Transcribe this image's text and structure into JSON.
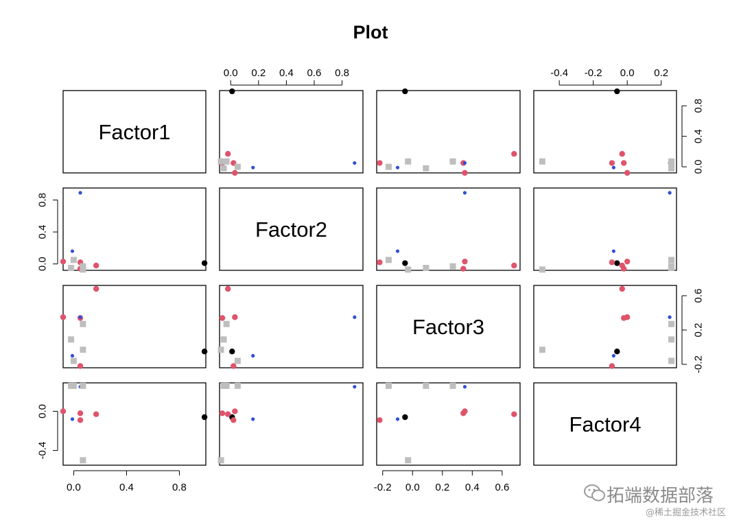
{
  "chart_data": {
    "type": "scatter",
    "title": "Plot",
    "variables": [
      "Factor1",
      "Factor2",
      "Factor3",
      "Factor4"
    ],
    "ranges": [
      [
        -0.08,
        1.0
      ],
      [
        -0.08,
        0.95
      ],
      [
        -0.24,
        0.72
      ],
      [
        -0.55,
        0.29
      ]
    ],
    "ticks": [
      [
        0.0,
        0.4,
        0.8
      ],
      [
        0.0,
        0.4,
        0.8
      ],
      [
        -0.2,
        0.2,
        0.6
      ],
      [
        -0.4,
        0.0
      ]
    ],
    "tick_labels": {
      "factor1": [
        "0.0",
        "0.4",
        "0.8"
      ],
      "factor2_top": [
        "0.0",
        "0.2",
        "0.4",
        "0.6",
        "0.8"
      ],
      "factor2_left": [
        "0.0",
        "0.4",
        "0.8"
      ],
      "factor3_bottom": [
        "-0.2",
        "0.0",
        "0.2",
        "0.4",
        "0.6"
      ],
      "factor3_right": [
        "-0.2",
        "0.2",
        "0.6"
      ],
      "factor4_top": [
        "-0.4",
        "-0.2",
        "0.0",
        "0.2"
      ],
      "factor4_left": [
        "-0.4",
        "0.0"
      ]
    },
    "groups": [
      {
        "color": "#000000",
        "marker": "circle",
        "size": "large"
      },
      {
        "color": "#df536b",
        "marker": "circle",
        "size": "large"
      },
      {
        "color": "#2e4fd6",
        "marker": "circle",
        "size": "small"
      },
      {
        "color": "#bebebe",
        "marker": "square",
        "size": "large"
      }
    ],
    "observations": [
      {
        "group": 0,
        "values": [
          0.99,
          0.01,
          -0.05,
          -0.06
        ]
      },
      {
        "group": 1,
        "values": [
          0.05,
          0.02,
          -0.22,
          -0.09
        ]
      },
      {
        "group": 1,
        "values": [
          -0.08,
          0.03,
          0.35,
          0.0
        ]
      },
      {
        "group": 1,
        "values": [
          0.17,
          -0.02,
          0.68,
          -0.03
        ]
      },
      {
        "group": 1,
        "values": [
          0.05,
          -0.06,
          0.34,
          -0.02
        ]
      },
      {
        "group": 2,
        "values": [
          -0.01,
          0.16,
          -0.1,
          -0.08
        ]
      },
      {
        "group": 2,
        "values": [
          0.05,
          0.89,
          0.35,
          0.25
        ]
      },
      {
        "group": 3,
        "values": [
          0.0,
          0.05,
          -0.16,
          0.26
        ]
      },
      {
        "group": 3,
        "values": [
          -0.02,
          -0.05,
          0.09,
          0.26
        ]
      },
      {
        "group": 3,
        "values": [
          0.07,
          -0.03,
          0.27,
          0.26
        ]
      },
      {
        "group": 3,
        "values": [
          0.07,
          -0.07,
          -0.03,
          -0.5
        ]
      }
    ]
  },
  "watermark": {
    "icon": "wechat-icon",
    "main": "拓端数据部落",
    "sub": "@稀土掘金技术社区"
  }
}
